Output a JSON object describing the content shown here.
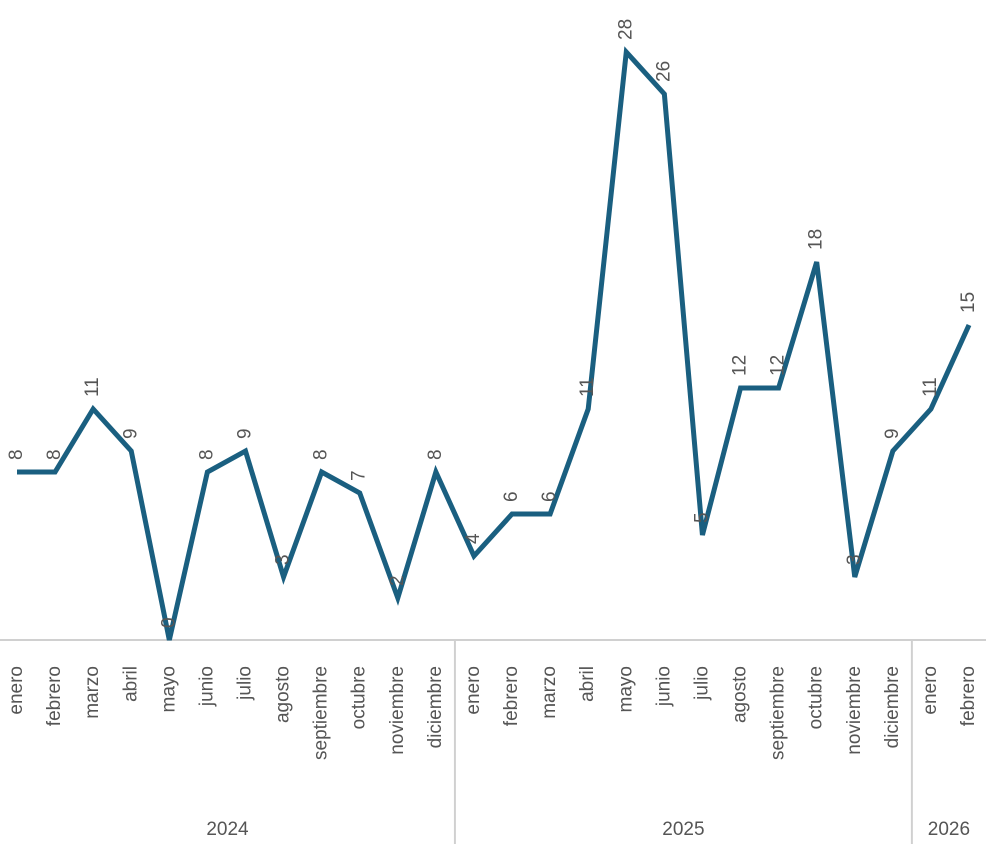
{
  "chart_data": {
    "type": "line",
    "categories": [
      "enero",
      "febrero",
      "marzo",
      "abril",
      "mayo",
      "junio",
      "julio",
      "agosto",
      "septiembre",
      "octubre",
      "noviembre",
      "diciembre",
      "enero",
      "febrero",
      "marzo",
      "abril",
      "mayo",
      "junio",
      "julio",
      "agosto",
      "septiembre",
      "octubre",
      "noviembre",
      "diciembre",
      "enero",
      "febrero"
    ],
    "category_groups": [
      {
        "label": "2024",
        "size": 12
      },
      {
        "label": "2025",
        "size": 12
      },
      {
        "label": "2026",
        "size": 2
      }
    ],
    "series": [
      {
        "color": "#1a5f80",
        "values": [
          8,
          8,
          11,
          9,
          0,
          8,
          9,
          3,
          8,
          7,
          2,
          8,
          4,
          6,
          6,
          11,
          28,
          26,
          5,
          12,
          12,
          18,
          3,
          9,
          11,
          15
        ]
      }
    ],
    "ylim": [
      0,
      30
    ]
  }
}
